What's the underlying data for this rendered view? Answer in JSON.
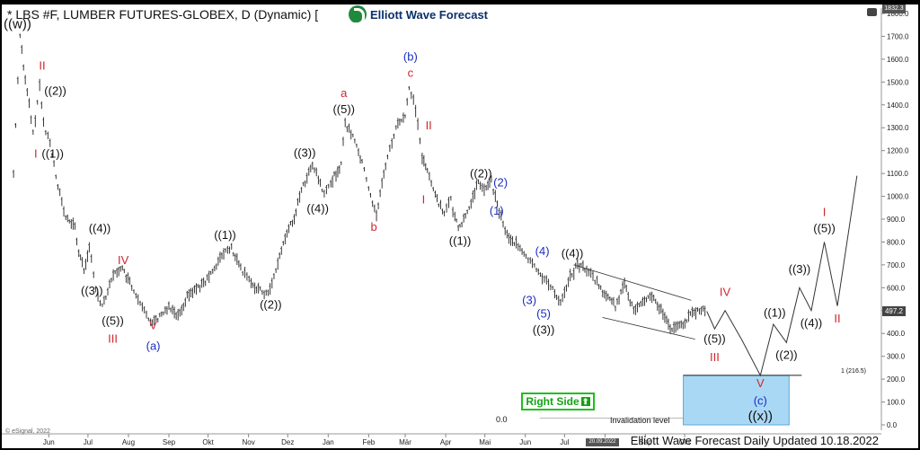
{
  "header": {
    "title": "* LBS #F, LUMBER FUTURES-GLOBEX, D (Dynamic) [",
    "logo_text": "Elliott Wave Forecast"
  },
  "footer": {
    "updated": "Elliott Wave Forecast Daily Updated 10.18.2022",
    "esignal": "© eSignal, 2022"
  },
  "annotations": {
    "right_side": "Right Side",
    "invalidation": "Invalidation level",
    "zero": "0.0",
    "fib": "1 (216.5)",
    "current_price": "497.2",
    "top_box": "1832.3",
    "date_box": "20.09.2022"
  },
  "colors": {
    "red": "#d0262e",
    "blue": "#1b2fbd",
    "black": "#111111",
    "box": "#a9d8f5",
    "green": "#13a313"
  },
  "chart_data": {
    "type": "line",
    "title": "* LBS #F, LUMBER FUTURES-GLOBEX, D (Dynamic)",
    "y_axis": {
      "min": 0,
      "max": 1800,
      "ticks": [
        "1800.0",
        "1700.0",
        "1600.0",
        "1500.0",
        "1400.0",
        "1300.0",
        "1200.0",
        "1100.0",
        "1000.0",
        "900.0",
        "800.0",
        "700.0",
        "600.0",
        "500.0",
        "400.0",
        "300.0",
        "200.0",
        "100.0",
        "0.0"
      ]
    },
    "x_axis": {
      "ticks": [
        "Jun",
        "Jul",
        "Aug",
        "Sep",
        "Okt",
        "Nov",
        "Dez",
        "Jan",
        "Feb",
        "Mär",
        "Apr",
        "Mai",
        "Jun",
        "Jul",
        "Aug",
        "Sep",
        "Okt"
      ]
    },
    "series": [
      {
        "values": [
          [
            "2021-05-05",
            1100
          ],
          [
            "2021-05-10",
            1711
          ],
          [
            "2021-05-14",
            1500
          ],
          [
            "2021-05-17",
            1400
          ],
          [
            "2021-05-20",
            1270
          ],
          [
            "2021-05-25",
            1480
          ],
          [
            "2021-05-28",
            1320
          ],
          [
            "2021-06-02",
            1230
          ],
          [
            "2021-06-08",
            1050
          ],
          [
            "2021-06-14",
            900
          ],
          [
            "2021-06-21",
            870
          ],
          [
            "2021-06-24",
            750
          ],
          [
            "2021-06-28",
            680
          ],
          [
            "2021-07-02",
            780
          ],
          [
            "2021-07-07",
            590
          ],
          [
            "2021-07-12",
            520
          ],
          [
            "2021-07-19",
            640
          ],
          [
            "2021-07-26",
            690
          ],
          [
            "2021-08-02",
            620
          ],
          [
            "2021-08-10",
            520
          ],
          [
            "2021-08-18",
            455
          ],
          [
            "2021-08-25",
            470
          ],
          [
            "2021-09-01",
            520
          ],
          [
            "2021-09-08",
            480
          ],
          [
            "2021-09-15",
            560
          ],
          [
            "2021-09-22",
            600
          ],
          [
            "2021-09-29",
            620
          ],
          [
            "2021-10-06",
            690
          ],
          [
            "2021-10-13",
            750
          ],
          [
            "2021-10-19",
            770
          ],
          [
            "2021-10-26",
            680
          ],
          [
            "2021-11-03",
            620
          ],
          [
            "2021-11-10",
            590
          ],
          [
            "2021-11-16",
            570
          ],
          [
            "2021-11-22",
            680
          ],
          [
            "2021-11-29",
            820
          ],
          [
            "2021-12-06",
            910
          ],
          [
            "2021-12-13",
            1050
          ],
          [
            "2021-12-20",
            1130
          ],
          [
            "2021-12-23",
            1100
          ],
          [
            "2021-12-29",
            1000
          ],
          [
            "2022-01-03",
            1060
          ],
          [
            "2022-01-07",
            1100
          ],
          [
            "2022-01-11",
            1140
          ],
          [
            "2022-01-14",
            1320
          ],
          [
            "2022-01-20",
            1260
          ],
          [
            "2022-01-27",
            1150
          ],
          [
            "2022-02-01",
            1030
          ],
          [
            "2022-02-07",
            920
          ],
          [
            "2022-02-14",
            1140
          ],
          [
            "2022-02-22",
            1300
          ],
          [
            "2022-03-01",
            1350
          ],
          [
            "2022-03-04",
            1480
          ],
          [
            "2022-03-09",
            1380
          ],
          [
            "2022-03-14",
            1170
          ],
          [
            "2022-03-18",
            1120
          ],
          [
            "2022-03-24",
            1000
          ],
          [
            "2022-03-31",
            930
          ],
          [
            "2022-04-05",
            980
          ],
          [
            "2022-04-08",
            900
          ],
          [
            "2022-04-12",
            860
          ],
          [
            "2022-04-19",
            950
          ],
          [
            "2022-04-26",
            1060
          ],
          [
            "2022-05-02",
            1030
          ],
          [
            "2022-05-06",
            1070
          ],
          [
            "2022-05-09",
            990
          ],
          [
            "2022-05-18",
            830
          ],
          [
            "2022-05-25",
            790
          ],
          [
            "2022-05-31",
            740
          ],
          [
            "2022-06-08",
            690
          ],
          [
            "2022-06-14",
            650
          ],
          [
            "2022-06-22",
            590
          ],
          [
            "2022-06-28",
            540
          ],
          [
            "2022-07-04",
            630
          ],
          [
            "2022-07-11",
            700
          ],
          [
            "2022-07-18",
            680
          ],
          [
            "2022-07-26",
            620
          ],
          [
            "2022-08-02",
            560
          ],
          [
            "2022-08-09",
            520
          ],
          [
            "2022-08-16",
            610
          ],
          [
            "2022-08-23",
            500
          ],
          [
            "2022-08-30",
            550
          ],
          [
            "2022-09-06",
            560
          ],
          [
            "2022-09-13",
            500
          ],
          [
            "2022-09-20",
            420
          ],
          [
            "2022-09-27",
            430
          ],
          [
            "2022-10-04",
            470
          ],
          [
            "2022-10-11",
            500
          ],
          [
            "2022-10-18",
            497
          ]
        ]
      }
    ],
    "projection": [
      [
        "2022-10-24",
        420
      ],
      [
        "2022-11-01",
        500
      ],
      [
        "2022-11-14",
        370
      ],
      [
        "2022-11-28",
        216
      ],
      [
        "2022-12-08",
        440
      ],
      [
        "2022-12-18",
        360
      ],
      [
        "2022-12-28",
        600
      ],
      [
        "2023-01-06",
        500
      ],
      [
        "2023-01-16",
        800
      ],
      [
        "2023-01-26",
        520
      ],
      [
        "2023-02-10",
        1090
      ]
    ],
    "channel": {
      "upper": [
        [
          "2022-07-08",
          700
        ],
        [
          "2022-10-06",
          545
        ]
      ],
      "lower": [
        [
          "2022-07-30",
          470
        ],
        [
          "2022-10-09",
          375
        ]
      ]
    },
    "target_zone": {
      "x_start": "2022-09-30",
      "x_end": "2022-12-20",
      "y_low": 0,
      "y_high": 216.5
    },
    "wave_labels": [
      {
        "text": "((w))",
        "x": "2021-05-08",
        "y": 1711,
        "color": "black",
        "pos": "above"
      },
      {
        "text": "II",
        "x": "2021-05-27",
        "y": 1530,
        "color": "red",
        "pos": "above"
      },
      {
        "text": "((2))",
        "x": "2021-06-06",
        "y": 1420,
        "color": "black",
        "pos": "above"
      },
      {
        "text": "I",
        "x": "2021-05-22",
        "y": 1220,
        "color": "red",
        "pos": "below"
      },
      {
        "text": "((1))",
        "x": "2021-06-04",
        "y": 1220,
        "color": "black",
        "pos": "below"
      },
      {
        "text": "((4))",
        "x": "2021-07-10",
        "y": 820,
        "color": "black",
        "pos": "above"
      },
      {
        "text": "((3))",
        "x": "2021-07-04",
        "y": 620,
        "color": "black",
        "pos": "below"
      },
      {
        "text": "IV",
        "x": "2021-07-28",
        "y": 680,
        "color": "red",
        "pos": "above"
      },
      {
        "text": "((5))",
        "x": "2021-07-20",
        "y": 490,
        "color": "black",
        "pos": "below"
      },
      {
        "text": "III",
        "x": "2021-07-20",
        "y": 410,
        "color": "red",
        "pos": "below"
      },
      {
        "text": "V",
        "x": "2021-08-20",
        "y": 470,
        "color": "red",
        "pos": "below"
      },
      {
        "text": "(a)",
        "x": "2021-08-20",
        "y": 380,
        "color": "blue",
        "pos": "below"
      },
      {
        "text": "((1))",
        "x": "2021-10-14",
        "y": 790,
        "color": "black",
        "pos": "above"
      },
      {
        "text": "((2))",
        "x": "2021-11-18",
        "y": 560,
        "color": "black",
        "pos": "below"
      },
      {
        "text": "((3))",
        "x": "2021-12-14",
        "y": 1150,
        "color": "black",
        "pos": "above"
      },
      {
        "text": "((4))",
        "x": "2021-12-24",
        "y": 980,
        "color": "black",
        "pos": "below"
      },
      {
        "text": "a",
        "x": "2022-01-13",
        "y": 1410,
        "color": "red",
        "pos": "above"
      },
      {
        "text": "((5))",
        "x": "2022-01-13",
        "y": 1340,
        "color": "black",
        "pos": "above"
      },
      {
        "text": "b",
        "x": "2022-02-05",
        "y": 900,
        "color": "red",
        "pos": "below"
      },
      {
        "text": "(b)",
        "x": "2022-03-05",
        "y": 1570,
        "color": "blue",
        "pos": "above"
      },
      {
        "text": "c",
        "x": "2022-03-05",
        "y": 1500,
        "color": "red",
        "pos": "above"
      },
      {
        "text": "II",
        "x": "2022-03-19",
        "y": 1270,
        "color": "red",
        "pos": "above"
      },
      {
        "text": "I",
        "x": "2022-03-15",
        "y": 1020,
        "color": "red",
        "pos": "below"
      },
      {
        "text": "((2))",
        "x": "2022-04-28",
        "y": 1060,
        "color": "black",
        "pos": "above"
      },
      {
        "text": "(2)",
        "x": "2022-05-13",
        "y": 1020,
        "color": "blue",
        "pos": "above"
      },
      {
        "text": "(1)",
        "x": "2022-05-10",
        "y": 970,
        "color": "blue",
        "pos": "below"
      },
      {
        "text": "((1))",
        "x": "2022-04-12",
        "y": 840,
        "color": "black",
        "pos": "below"
      },
      {
        "text": "(4)",
        "x": "2022-06-14",
        "y": 720,
        "color": "blue",
        "pos": "above"
      },
      {
        "text": "((4))",
        "x": "2022-07-07",
        "y": 710,
        "color": "black",
        "pos": "above"
      },
      {
        "text": "(3)",
        "x": "2022-06-04",
        "y": 580,
        "color": "blue",
        "pos": "below"
      },
      {
        "text": "(5)",
        "x": "2022-06-15",
        "y": 520,
        "color": "blue",
        "pos": "below"
      },
      {
        "text": "((3))",
        "x": "2022-06-15",
        "y": 450,
        "color": "black",
        "pos": "below"
      },
      {
        "text": "IV",
        "x": "2022-11-01",
        "y": 540,
        "color": "red",
        "pos": "above"
      },
      {
        "text": "((5))",
        "x": "2022-10-24",
        "y": 410,
        "color": "black",
        "pos": "below"
      },
      {
        "text": "III",
        "x": "2022-10-24",
        "y": 330,
        "color": "red",
        "pos": "below"
      },
      {
        "text": "((1))",
        "x": "2022-12-09",
        "y": 450,
        "color": "black",
        "pos": "above"
      },
      {
        "text": "((2))",
        "x": "2022-12-18",
        "y": 340,
        "color": "black",
        "pos": "below"
      },
      {
        "text": "((3))",
        "x": "2022-12-28",
        "y": 640,
        "color": "black",
        "pos": "above"
      },
      {
        "text": "((4))",
        "x": "2023-01-06",
        "y": 480,
        "color": "black",
        "pos": "below"
      },
      {
        "text": "I",
        "x": "2023-01-16",
        "y": 890,
        "color": "red",
        "pos": "above"
      },
      {
        "text": "((5))",
        "x": "2023-01-16",
        "y": 820,
        "color": "black",
        "pos": "above"
      },
      {
        "text": "II",
        "x": "2023-01-26",
        "y": 500,
        "color": "red",
        "pos": "below"
      },
      {
        "text": "V",
        "x": "2022-11-28",
        "y": 216,
        "color": "red",
        "pos": "below"
      },
      {
        "text": "(c)",
        "x": "2022-11-28",
        "y": 140,
        "color": "blue",
        "pos": "below"
      },
      {
        "text": "((x))",
        "x": "2022-11-28",
        "y": 70,
        "color": "black",
        "pos": "below"
      }
    ]
  }
}
